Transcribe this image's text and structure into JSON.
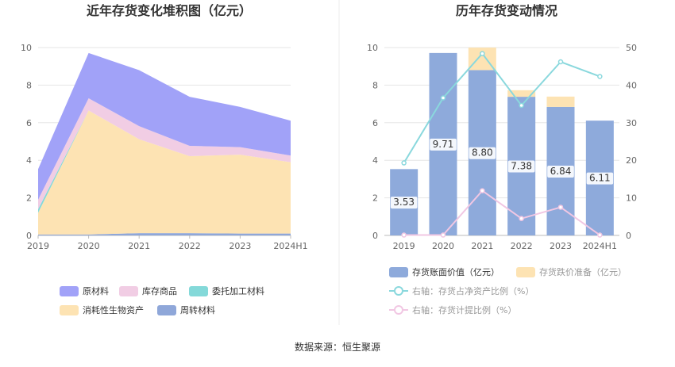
{
  "source": "数据来源：恒生聚源",
  "chart_data": [
    {
      "type": "area",
      "title": "近年存货变化堆积图（亿元）",
      "categories": [
        "2019",
        "2020",
        "2021",
        "2022",
        "2023",
        "2024H1"
      ],
      "ylim": [
        0,
        10
      ],
      "yticks": [
        "0",
        "2",
        "4",
        "6",
        "8",
        "10"
      ],
      "stacked": true,
      "legend_position": "bottom",
      "series": [
        {
          "name": "周转材料",
          "color": "#8fa7d9",
          "values": [
            0.05,
            0.05,
            0.12,
            0.12,
            0.1,
            0.1
          ]
        },
        {
          "name": "消耗性生物资产",
          "color": "#fde3b3",
          "values": [
            1.15,
            6.6,
            5.0,
            4.1,
            4.2,
            3.8
          ]
        },
        {
          "name": "委托加工材料",
          "color": "#84d9d9",
          "values": [
            0.2,
            0.0,
            0.0,
            0.0,
            0.0,
            0.0
          ]
        },
        {
          "name": "库存商品",
          "color": "#f1cde4",
          "values": [
            0.5,
            0.65,
            0.7,
            0.55,
            0.4,
            0.35
          ]
        },
        {
          "name": "原材料",
          "color": "#a1a2f8",
          "values": [
            1.63,
            2.41,
            2.98,
            2.61,
            2.14,
            1.86
          ]
        }
      ],
      "legend_order": [
        "原材料",
        "库存商品",
        "委托加工材料",
        "消耗性生物资产",
        "周转材料"
      ]
    },
    {
      "type": "bar",
      "title": "历年存货变动情况",
      "categories": [
        "2019",
        "2020",
        "2021",
        "2022",
        "2023",
        "2024H1"
      ],
      "ylim": [
        0,
        10
      ],
      "yticks": [
        "0",
        "2",
        "4",
        "6",
        "8",
        "10"
      ],
      "y2lim": [
        0,
        50
      ],
      "y2ticks": [
        "0",
        "10",
        "20",
        "30",
        "40",
        "50"
      ],
      "legend_position": "bottom",
      "series": [
        {
          "name": "存货账面价值（亿元）",
          "color": "#8eaadb",
          "values": [
            3.53,
            9.71,
            8.8,
            7.38,
            6.84,
            6.11
          ],
          "labels": [
            "3.53",
            "9.71",
            "8.80",
            "7.38",
            "6.84",
            "6.11"
          ]
        },
        {
          "name": "存货跌价准备（亿元）",
          "color": "#fde3b3",
          "values": [
            0,
            0,
            1.2,
            0.35,
            0.55,
            0
          ]
        },
        {
          "name": "右轴：存货占净资产比例（%）",
          "color": "#8ad8dd",
          "axis": "right",
          "values": [
            19.3,
            36.6,
            48.4,
            34.6,
            46.2,
            42.3
          ]
        },
        {
          "name": "右轴：存货计提比例（%）",
          "color": "#f1c7e3",
          "axis": "right",
          "values": [
            0.1,
            0.1,
            11.9,
            4.5,
            7.5,
            0.1
          ]
        }
      ]
    }
  ]
}
